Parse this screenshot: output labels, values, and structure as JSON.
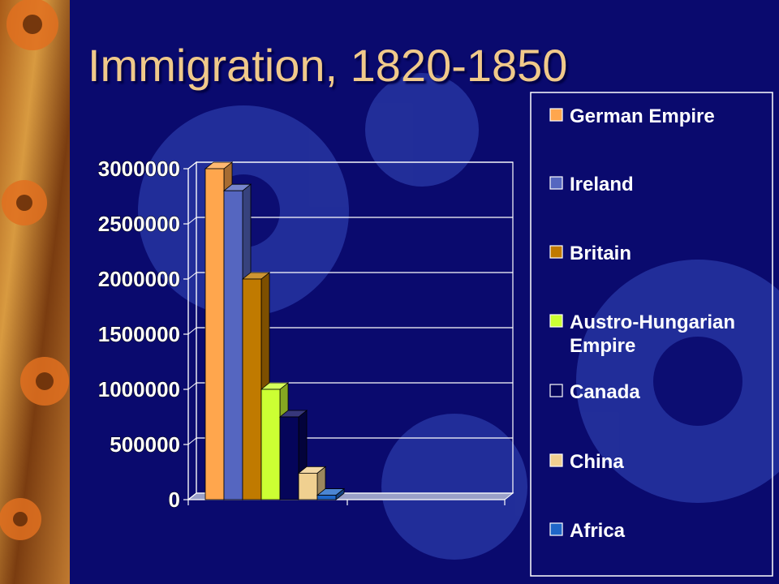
{
  "slide": {
    "title": "Immigration, 1820-1850",
    "colors": {
      "background": "#0a0a6e",
      "title": "#f0c98a",
      "gear": "#2a3aa8"
    }
  },
  "chart_data": {
    "type": "bar",
    "title": "",
    "xlabel": "",
    "ylabel": "",
    "ylim": [
      0,
      3000000
    ],
    "yticks": [
      "3000000",
      "2500000",
      "2000000",
      "1500000",
      "1000000",
      "500000",
      "0"
    ],
    "grid": true,
    "legend_position": "right",
    "series": [
      {
        "name": "German Empire",
        "values": [
          3000000
        ],
        "color": "#ffa64d"
      },
      {
        "name": "Ireland",
        "values": [
          2800000
        ],
        "color": "#5566c0"
      },
      {
        "name": "Britain",
        "values": [
          2000000
        ],
        "color": "#c07a00"
      },
      {
        "name": "Austro-Hungarian Empire",
        "legend_lines": [
          "Austro-Hungarian",
          "Empire"
        ],
        "values": [
          1000000
        ],
        "color": "#ccff33"
      },
      {
        "name": "Canada",
        "values": [
          750000
        ],
        "color": "#05055a"
      },
      {
        "name": "China",
        "values": [
          240000
        ],
        "color": "#f0d090"
      },
      {
        "name": "Africa",
        "values": [
          40000
        ],
        "color": "#1e66c8"
      }
    ]
  }
}
